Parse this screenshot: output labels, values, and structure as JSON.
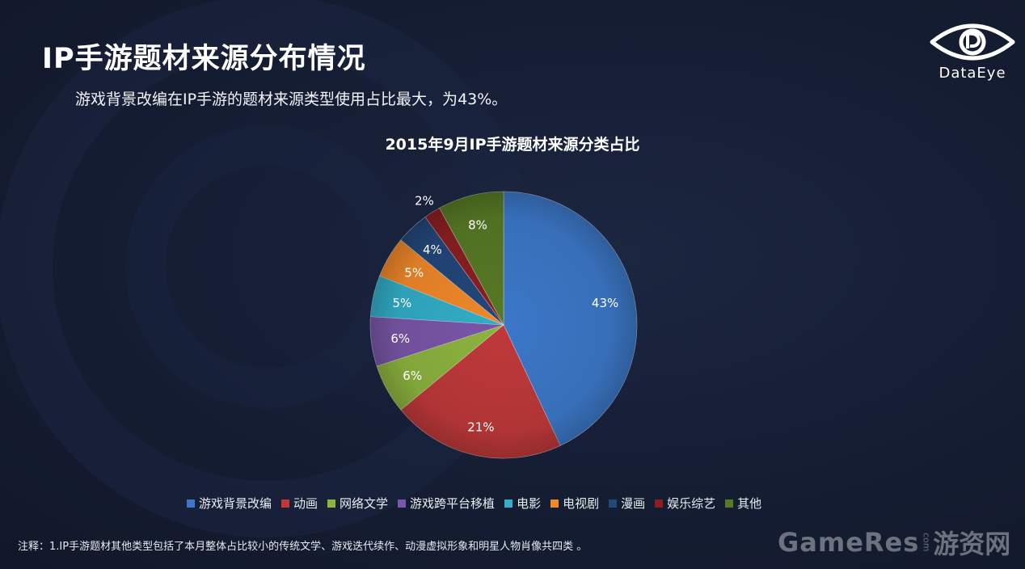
{
  "header": {
    "title": "IP手游题材来源分布情况",
    "subtitle": "游戏背景改编在IP手游的题材来源类型使用占比最大，为43%。"
  },
  "logo": {
    "text": "DataEye",
    "icon": "eye-icon"
  },
  "chart_data": {
    "type": "pie",
    "title": "2015年9月IP手游题材来源分类占比",
    "categories": [
      "游戏背景改编",
      "动画",
      "网络文学",
      "游戏跨平台移植",
      "电影",
      "电视剧",
      "漫画",
      "娱乐综艺",
      "其他"
    ],
    "values": [
      43,
      21,
      6,
      6,
      5,
      5,
      4,
      2,
      8
    ],
    "labels": [
      "43%",
      "21%",
      "6%",
      "6%",
      "5%",
      "5%",
      "4%",
      "2%",
      "8%"
    ],
    "colors": [
      "#3c78c8",
      "#c0393a",
      "#8db43f",
      "#7a56a8",
      "#32aec8",
      "#f0882a",
      "#23477a",
      "#8a1f22",
      "#577a25"
    ],
    "legend_position": "bottom"
  },
  "footnote": "注释：1.IP手游题材其他类型包括了本月整体占比较小的传统文学、游戏迭代续作、动漫虚拟形象和明星人物肖像共四类 。",
  "watermark": {
    "brand": "GameRes",
    "com": "com",
    "cn": "游资网"
  }
}
